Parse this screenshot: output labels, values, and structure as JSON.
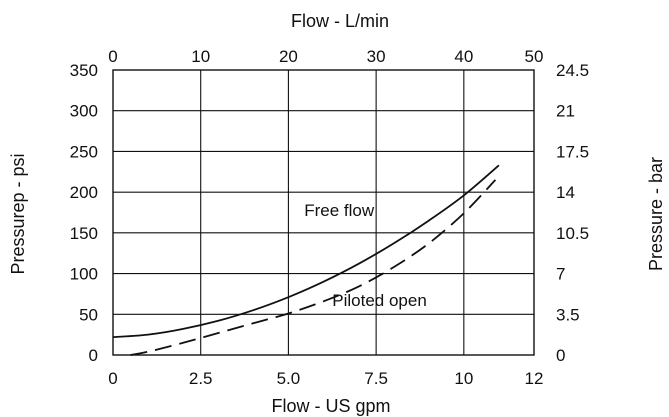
{
  "chart_data": {
    "type": "line",
    "xlabel": "Flow - US gpm",
    "x2label": "Flow - L/min",
    "ylabel": "Pressurep - psi",
    "y2label": "Pressure - bar",
    "xlim": [
      0,
      12
    ],
    "ylim": [
      0,
      350
    ],
    "x_ticks": [
      "0",
      "2.5",
      "5.0",
      "7.5",
      "10",
      "12"
    ],
    "x_tick_values": [
      0,
      2.5,
      5.0,
      7.5,
      10,
      12
    ],
    "x2_ticks": [
      "0",
      "10",
      "20",
      "30",
      "40",
      "50"
    ],
    "y_ticks": [
      "0",
      "50",
      "100",
      "150",
      "200",
      "250",
      "300",
      "350"
    ],
    "y_tick_values": [
      0,
      50,
      100,
      150,
      200,
      250,
      300,
      350
    ],
    "y2_ticks": [
      "0",
      "3.5",
      "7",
      "10.5",
      "14",
      "17.5",
      "21",
      "24.5"
    ],
    "grid": true,
    "series": [
      {
        "name": "Free flow",
        "style": "solid",
        "x": [
          0,
          1,
          2,
          3,
          4,
          5,
          6,
          7,
          8,
          9,
          10,
          11
        ],
        "y": [
          22,
          25,
          32,
          42,
          55,
          71,
          90,
          112,
          137,
          165,
          196,
          233
        ]
      },
      {
        "name": "Piloted open",
        "style": "dashed",
        "x": [
          0.5,
          1,
          2,
          3,
          4,
          5,
          6,
          7,
          8,
          9,
          10,
          10.9
        ],
        "y": [
          0,
          4,
          15,
          27,
          39,
          51,
          66,
          84,
          108,
          137,
          174,
          215
        ]
      }
    ],
    "annotations": [
      {
        "text": "Free flow",
        "x": 5.45,
        "y": 171
      },
      {
        "text": "Piloted open",
        "x": 6.25,
        "y": 60
      }
    ]
  }
}
